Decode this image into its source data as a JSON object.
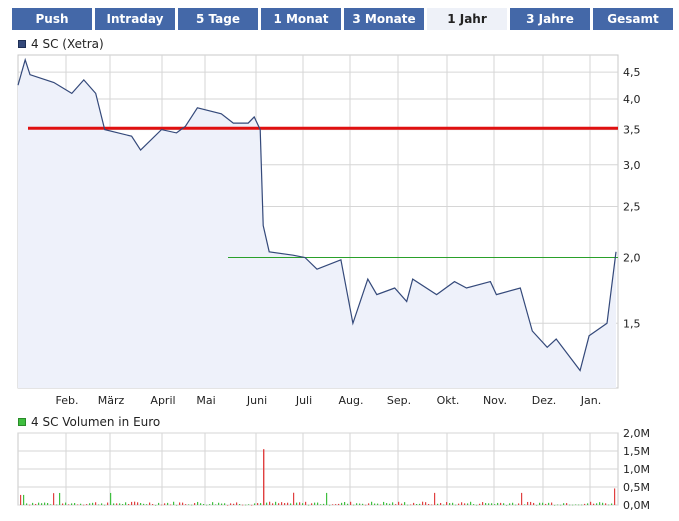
{
  "tabs": [
    {
      "label": "Push",
      "active": false
    },
    {
      "label": "Intraday",
      "active": false
    },
    {
      "label": "5 Tage",
      "active": false
    },
    {
      "label": "1 Monat",
      "active": false
    },
    {
      "label": "3 Monate",
      "active": false
    },
    {
      "label": "1 Jahr",
      "active": true
    },
    {
      "label": "3 Jahre",
      "active": false
    },
    {
      "label": "Gesamt",
      "active": false
    }
  ],
  "colors": {
    "tab_bg": "#4468a8",
    "price_line": "#34497a",
    "price_fill": "#eef1fa",
    "red_line": "#e01010",
    "green_line": "#2aa02a",
    "volume_bar": "#3fbf3f",
    "volume_spike": "#e04040",
    "grid": "#d6d6d6"
  },
  "chart_data": [
    {
      "type": "line",
      "legend": "4 SC (Xetra)",
      "x_tick_labels": [
        "Feb.",
        "März",
        "April",
        "Mai",
        "Juni",
        "Juli",
        "Aug.",
        "Sep.",
        "Okt.",
        "Nov.",
        "Dez.",
        "Jan."
      ],
      "y_tick_labels": [
        "4,5",
        "4,0",
        "3,5",
        "3,0",
        "2,5",
        "2,0",
        "1,5"
      ],
      "y_ticks": [
        4.5,
        4.0,
        3.5,
        3.0,
        2.5,
        2.0,
        1.5
      ],
      "ylim": [
        1.13,
        4.85
      ],
      "y_scale": "log",
      "reference_lines": [
        {
          "value": 3.52,
          "color": "red",
          "from": "Jan.",
          "to": "Jan."
        },
        {
          "value": 2.0,
          "color": "green",
          "from": "Mai",
          "to": "Jan."
        }
      ],
      "series": [
        {
          "name": "4 SC (Xetra)",
          "x": [
            "Jan.",
            "Jan.",
            "Jan.",
            "Feb.",
            "Feb.",
            "Feb.",
            "Feb.",
            "März",
            "März",
            "März",
            "April",
            "April",
            "April",
            "Mai",
            "Mai",
            "Mai",
            "Juni",
            "Juni",
            "Juni",
            "Juni",
            "Juni",
            "Juli",
            "Juli",
            "Juli",
            "Aug.",
            "Aug.",
            "Aug.",
            "Aug.",
            "Sep.",
            "Sep.",
            "Sep.",
            "Okt.",
            "Okt.",
            "Okt.",
            "Nov.",
            "Nov.",
            "Nov.",
            "Dez.",
            "Dez.",
            "Dez.",
            "Jan.",
            "Jan.",
            "Jan.",
            "Jan."
          ],
          "y": [
            4.25,
            4.75,
            4.45,
            4.3,
            4.1,
            4.35,
            4.1,
            3.5,
            3.4,
            3.2,
            3.5,
            3.45,
            3.55,
            3.85,
            3.75,
            3.6,
            3.6,
            3.7,
            3.5,
            2.3,
            2.05,
            2.02,
            2.0,
            1.9,
            1.98,
            1.5,
            1.82,
            1.7,
            1.75,
            1.65,
            1.82,
            1.7,
            1.8,
            1.75,
            1.8,
            1.7,
            1.75,
            1.45,
            1.35,
            1.4,
            1.22,
            1.42,
            1.5,
            2.05
          ]
        }
      ]
    },
    {
      "type": "bar",
      "legend": "4 SC Volumen in Euro",
      "y_tick_labels": [
        "2,0M",
        "1,5M",
        "1,0M",
        "0,5M",
        "0,0M"
      ],
      "ylim": [
        0,
        2.0
      ],
      "spike_value": 1.55,
      "max_value": 0.7
    }
  ]
}
